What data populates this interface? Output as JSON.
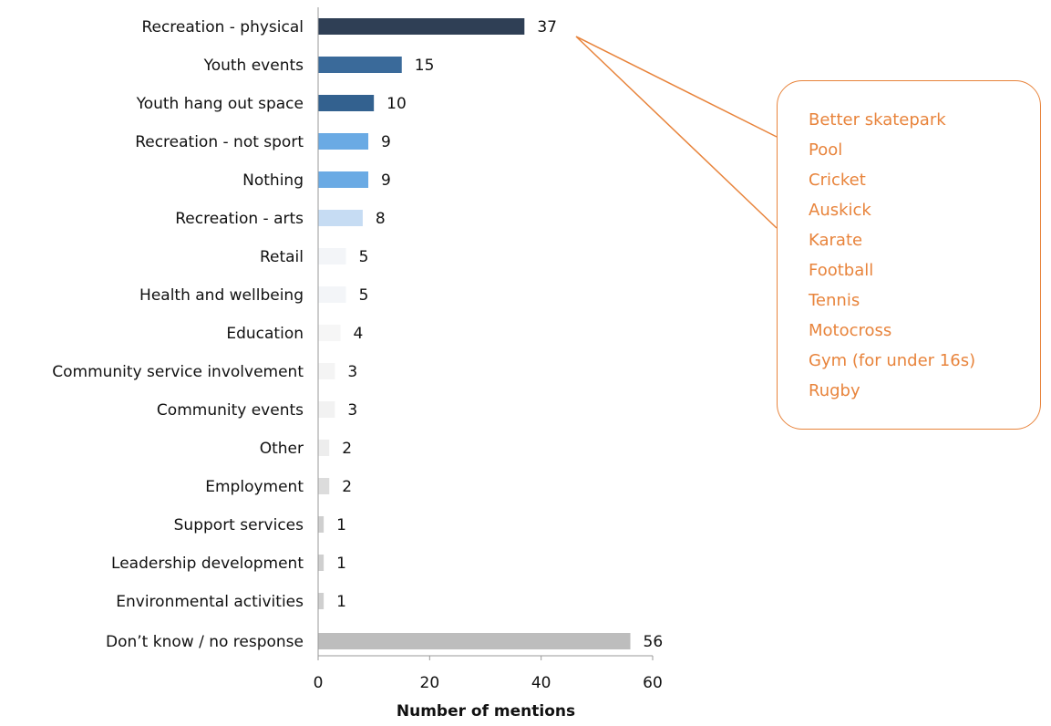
{
  "chart_data": {
    "type": "bar",
    "orientation": "horizontal",
    "categories": [
      "Recreation - physical",
      "Youth events",
      "Youth hang out space",
      "Recreation - not sport",
      "Nothing",
      "Recreation - arts",
      "Retail",
      "Health and wellbeing",
      "Education",
      "Community service involvement",
      "Community events",
      "Other",
      "Employment",
      "Support services",
      "Leadership development",
      "Environmental activities",
      "Don’t know / no response"
    ],
    "values": [
      37,
      15,
      10,
      9,
      9,
      8,
      5,
      5,
      4,
      3,
      3,
      2,
      2,
      1,
      1,
      1,
      56
    ],
    "value_labels": [
      "37",
      "15",
      "10",
      "9",
      "9",
      "8",
      "5",
      "5",
      "4",
      "3",
      "3",
      "2",
      "2",
      "1",
      "1",
      "1",
      "56"
    ],
    "bar_colors": [
      "#2f3f55",
      "#3a6a9a",
      "#33618f",
      "#6aaae4",
      "#6aaae4",
      "#c6dcf3",
      "#f3f5f8",
      "#f3f5f8",
      "#f6f6f6",
      "#f4f4f4",
      "#f2f2f2",
      "#ededed",
      "#dcdcdc",
      "#cfcfcf",
      "#cfcfcf",
      "#cfcfcf",
      "#bdbdbd"
    ],
    "xlim": [
      0,
      60
    ],
    "xticks": [
      "0",
      "20",
      "40",
      "60"
    ],
    "xlabel": "Number of mentions",
    "ylabel": "",
    "title": "",
    "grid": false,
    "legend": "none",
    "callout": {
      "points_to": "Recreation - physical",
      "border_color": "#e8843c",
      "text_color": "#e8843c",
      "items": [
        "Better skatepark",
        "Pool",
        "Cricket",
        "Auskick",
        "Karate",
        "Football",
        "Tennis",
        "Motocross",
        "Gym (for under 16s)",
        "Rugby"
      ]
    }
  }
}
